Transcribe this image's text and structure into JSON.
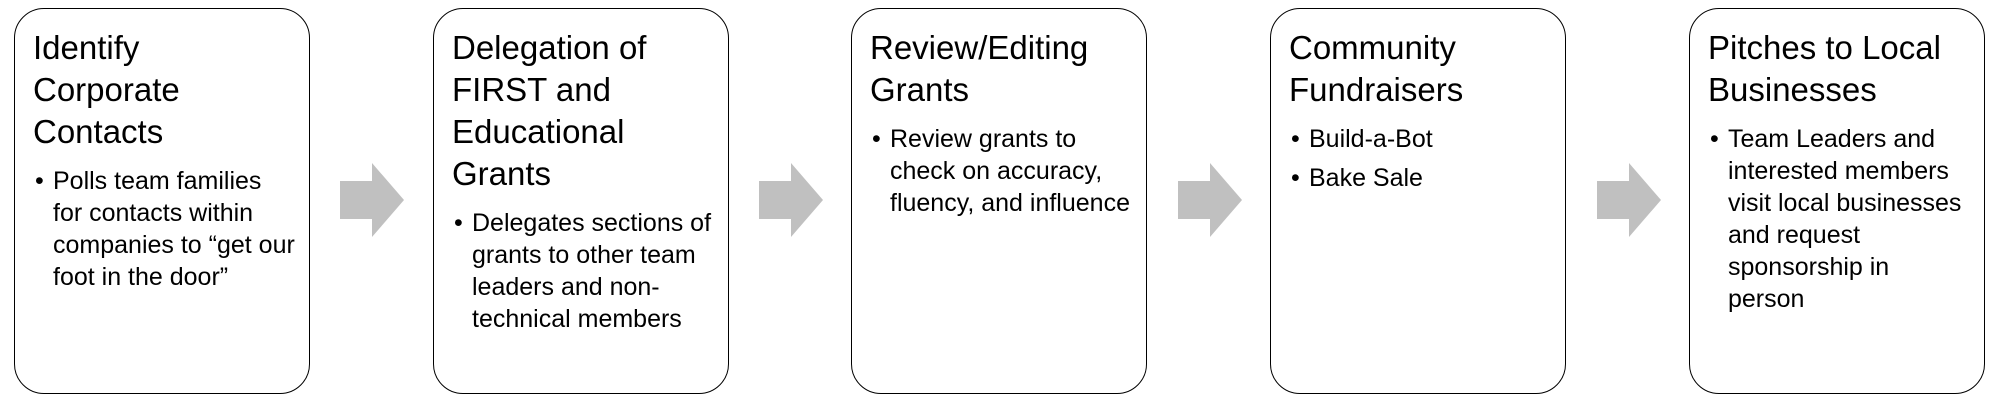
{
  "steps": [
    {
      "title": "Identify Corporate Contacts",
      "bullets": [
        "Polls team families for contacts within companies to “get our foot in the door”"
      ]
    },
    {
      "title": "Delegation of FIRST and Educational Grants",
      "bullets": [
        "Delegates sections of grants to other team leaders and non-technical members"
      ]
    },
    {
      "title": "Review/Editing Grants",
      "bullets": [
        "Review grants to check on accuracy, fluency, and influence"
      ]
    },
    {
      "title": "Community Fundraisers",
      "bullets": [
        "Build-a-Bot",
        "Bake Sale"
      ]
    },
    {
      "title": "Pitches to Local Businesses",
      "bullets": [
        "Team Leaders and interested members visit local businesses and request sponsorship in person"
      ]
    }
  ],
  "colors": {
    "arrow": "#c0c0c0",
    "border": "#000000"
  },
  "icons": {
    "arrow": "right-arrow-icon",
    "bullet": "•"
  }
}
